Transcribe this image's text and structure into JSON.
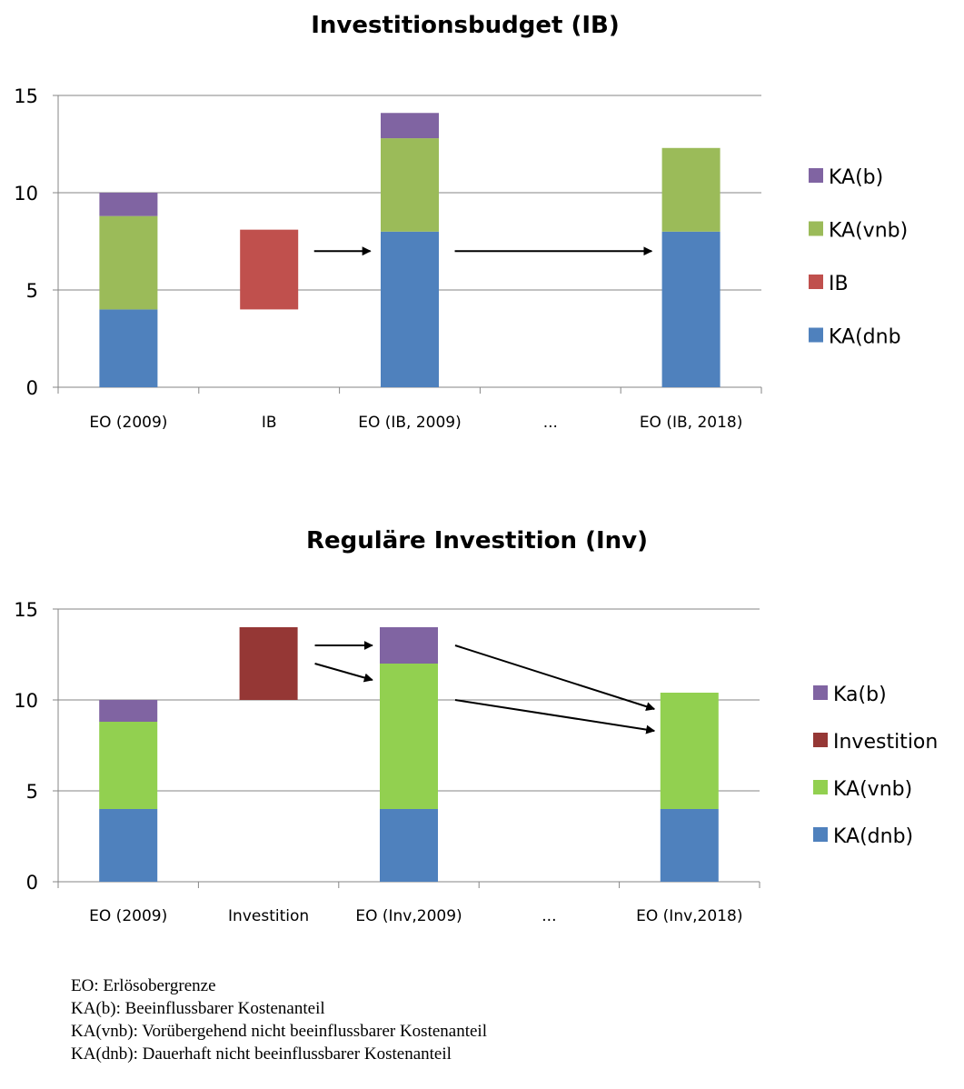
{
  "chart_data": [
    {
      "type": "bar",
      "stacked": true,
      "title": "Investitionsbudget (IB)",
      "categories": [
        "EO (2009)",
        "IB",
        "EO (IB, 2009)",
        "...",
        "EO (IB, 2018)"
      ],
      "ylim": [
        0,
        15
      ],
      "yticks": [
        "0",
        "5",
        "10",
        "15"
      ],
      "grid": true,
      "legend_position": "right",
      "series": [
        {
          "name": "KA(dnb",
          "color": "#4f81bd",
          "values": [
            4,
            0,
            8,
            0,
            8
          ]
        },
        {
          "name": "IB",
          "color": "#c0504d",
          "values": [
            0,
            0,
            0,
            0,
            0
          ],
          "floating": [
            [
              1,
              4,
              8.1
            ]
          ]
        },
        {
          "name": "KA(vnb)",
          "color": "#9bbb59",
          "values": [
            4.8,
            0,
            4.8,
            0,
            4.3
          ]
        },
        {
          "name": "KA(b)",
          "color": "#8064a2",
          "values": [
            1.2,
            0,
            1.3,
            0,
            0
          ]
        }
      ],
      "legend": [
        "KA(b)",
        "KA(vnb)",
        "IB",
        "KA(dnb"
      ],
      "arrows": [
        {
          "from": [
            1.32,
            7.0
          ],
          "to": [
            1.72,
            7.0
          ]
        },
        {
          "from": [
            2.32,
            7.0
          ],
          "to": [
            3.72,
            7.0
          ]
        }
      ]
    },
    {
      "type": "bar",
      "stacked": true,
      "title": "Reguläre Investition (Inv)",
      "categories": [
        "EO (2009)",
        "Investition",
        "EO (Inv,2009)",
        "...",
        "EO (Inv,2018)"
      ],
      "ylim": [
        0,
        15
      ],
      "yticks": [
        "0",
        "5",
        "10",
        "15"
      ],
      "grid": true,
      "legend_position": "right",
      "series": [
        {
          "name": "KA(dnb)",
          "color": "#4f81bd",
          "values": [
            4,
            0,
            4,
            0,
            4
          ]
        },
        {
          "name": "KA(vnb)",
          "color": "#92d050",
          "values": [
            4.8,
            0,
            8,
            0,
            6.4
          ]
        },
        {
          "name": "Investition",
          "color": "#953735",
          "values": [
            0,
            0,
            0,
            0,
            0
          ],
          "floating": [
            [
              1,
              10,
              14
            ]
          ]
        },
        {
          "name": "Ka(b)",
          "color": "#8064a2",
          "values": [
            1.2,
            0,
            2,
            0,
            0
          ]
        }
      ],
      "legend": [
        "Ka(b)",
        "Investition",
        "KA(vnb)",
        "KA(dnb)"
      ],
      "arrows": [
        {
          "from": [
            1.33,
            13.0
          ],
          "to": [
            1.74,
            13.0
          ]
        },
        {
          "from": [
            1.33,
            12.0
          ],
          "to": [
            1.74,
            11.1
          ]
        },
        {
          "from": [
            2.33,
            13.0
          ],
          "to": [
            3.75,
            9.5
          ]
        },
        {
          "from": [
            2.33,
            10.0
          ],
          "to": [
            3.75,
            8.3
          ]
        }
      ]
    }
  ],
  "notes": [
    "EO: Erlösobergrenze",
    "KA(b): Beeinflussbarer Kostenanteil",
    "KA(vnb): Vorübergehend nicht beeinflussbarer Kostenanteil",
    "KA(dnb): Dauerhaft nicht beeinflussbarer Kostenanteil"
  ]
}
